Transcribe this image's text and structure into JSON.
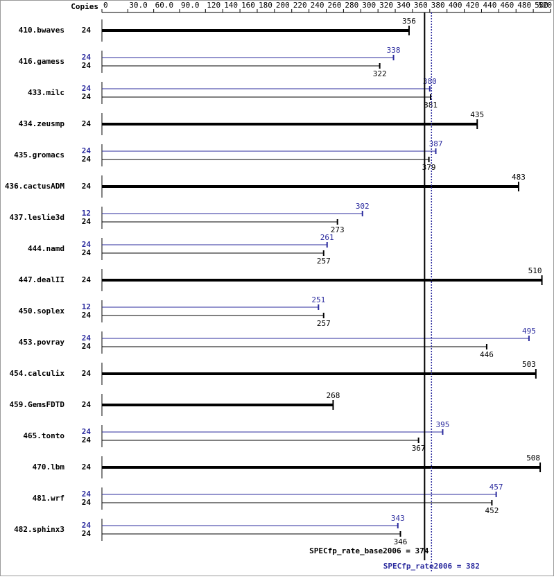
{
  "chart_data": {
    "type": "spec-rate",
    "copies_header": "Copies",
    "categories": [
      "410.bwaves",
      "416.gamess",
      "433.milc",
      "434.zeusmp",
      "435.gromacs",
      "436.cactusADM",
      "437.leslie3d",
      "444.namd",
      "447.dealII",
      "450.soplex",
      "453.povray",
      "454.calculix",
      "459.GemsFDTD",
      "465.tonto",
      "470.lbm",
      "481.wrf",
      "482.sphinx3"
    ],
    "series": [
      {
        "name": "base",
        "color": "#000000",
        "copies": [
          24,
          24,
          24,
          24,
          24,
          24,
          24,
          24,
          24,
          24,
          24,
          24,
          24,
          24,
          24,
          24,
          24
        ],
        "values": [
          356,
          322,
          381,
          435,
          379,
          483,
          273,
          257,
          510,
          257,
          446,
          503,
          268,
          367,
          508,
          452,
          346
        ]
      },
      {
        "name": "peak",
        "color": "#2b2b9e",
        "copies": [
          null,
          24,
          24,
          null,
          24,
          null,
          12,
          24,
          null,
          12,
          24,
          null,
          null,
          24,
          null,
          24,
          24
        ],
        "values": [
          null,
          338,
          380,
          null,
          387,
          null,
          302,
          261,
          null,
          251,
          495,
          null,
          null,
          395,
          null,
          457,
          343
        ]
      }
    ],
    "xlim": [
      0,
      520
    ],
    "xticks": [
      0,
      {
        "value": 30,
        "label": "30.0"
      },
      {
        "value": 60,
        "label": "60.0"
      },
      {
        "value": 90,
        "label": "90.0"
      },
      120,
      140,
      160,
      180,
      200,
      220,
      240,
      260,
      280,
      300,
      320,
      340,
      360,
      380,
      400,
      420,
      440,
      460,
      480,
      500,
      520
    ],
    "reference_lines": [
      {
        "label": "SPECfp_rate_base2006 = 374",
        "value": 374,
        "color": "#000000",
        "style": "solid"
      },
      {
        "label": "SPECfp_rate2006 = 382",
        "value": 382,
        "color": "#2b2b9e",
        "style": "dotted"
      }
    ]
  }
}
